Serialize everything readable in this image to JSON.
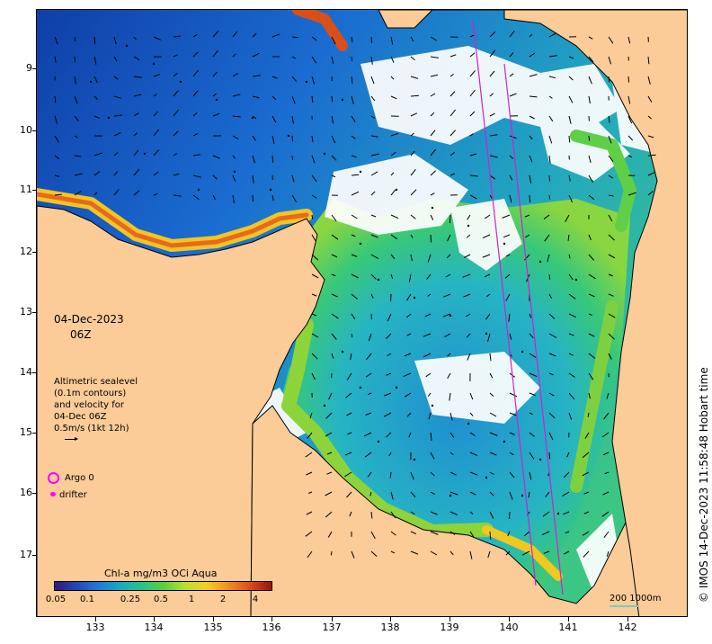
{
  "date_label": "04-Dec-2023",
  "time_label": "06Z",
  "altimetry_legend": [
    "Altimetric sealevel",
    "(0.1m contours)",
    "and velocity for",
    "04-Dec 06Z",
    "0.5m/s (1kt 12h)"
  ],
  "argo_label": "Argo 0",
  "drifter_label": "drifter",
  "colorbar": {
    "title": "Chl-a mg/m3 OCi Aqua",
    "ticks": [
      "0.05",
      "0.1",
      "0.25",
      "0.5",
      "1",
      "2",
      "4"
    ],
    "colors": [
      "#2a1a7e",
      "#2346b8",
      "#1e7ad6",
      "#18a8c8",
      "#22c48a",
      "#55d040",
      "#b8e02a",
      "#f4d020",
      "#f09020",
      "#d85018",
      "#a01010"
    ]
  },
  "scalebar_label": "200  1000m",
  "credit": "© IMOS 14-Dec-2023 11:58:48 Hobart time",
  "axes": {
    "y_ticks": [
      "9",
      "10",
      "11",
      "12",
      "13",
      "14",
      "15",
      "16",
      "17"
    ],
    "x_ticks": [
      "133",
      "134",
      "135",
      "136",
      "137",
      "138",
      "139",
      "140",
      "141",
      "142"
    ]
  },
  "colors": {
    "land": "#fbcb98",
    "argo": "#ff00ff",
    "track": "#d020d0"
  }
}
